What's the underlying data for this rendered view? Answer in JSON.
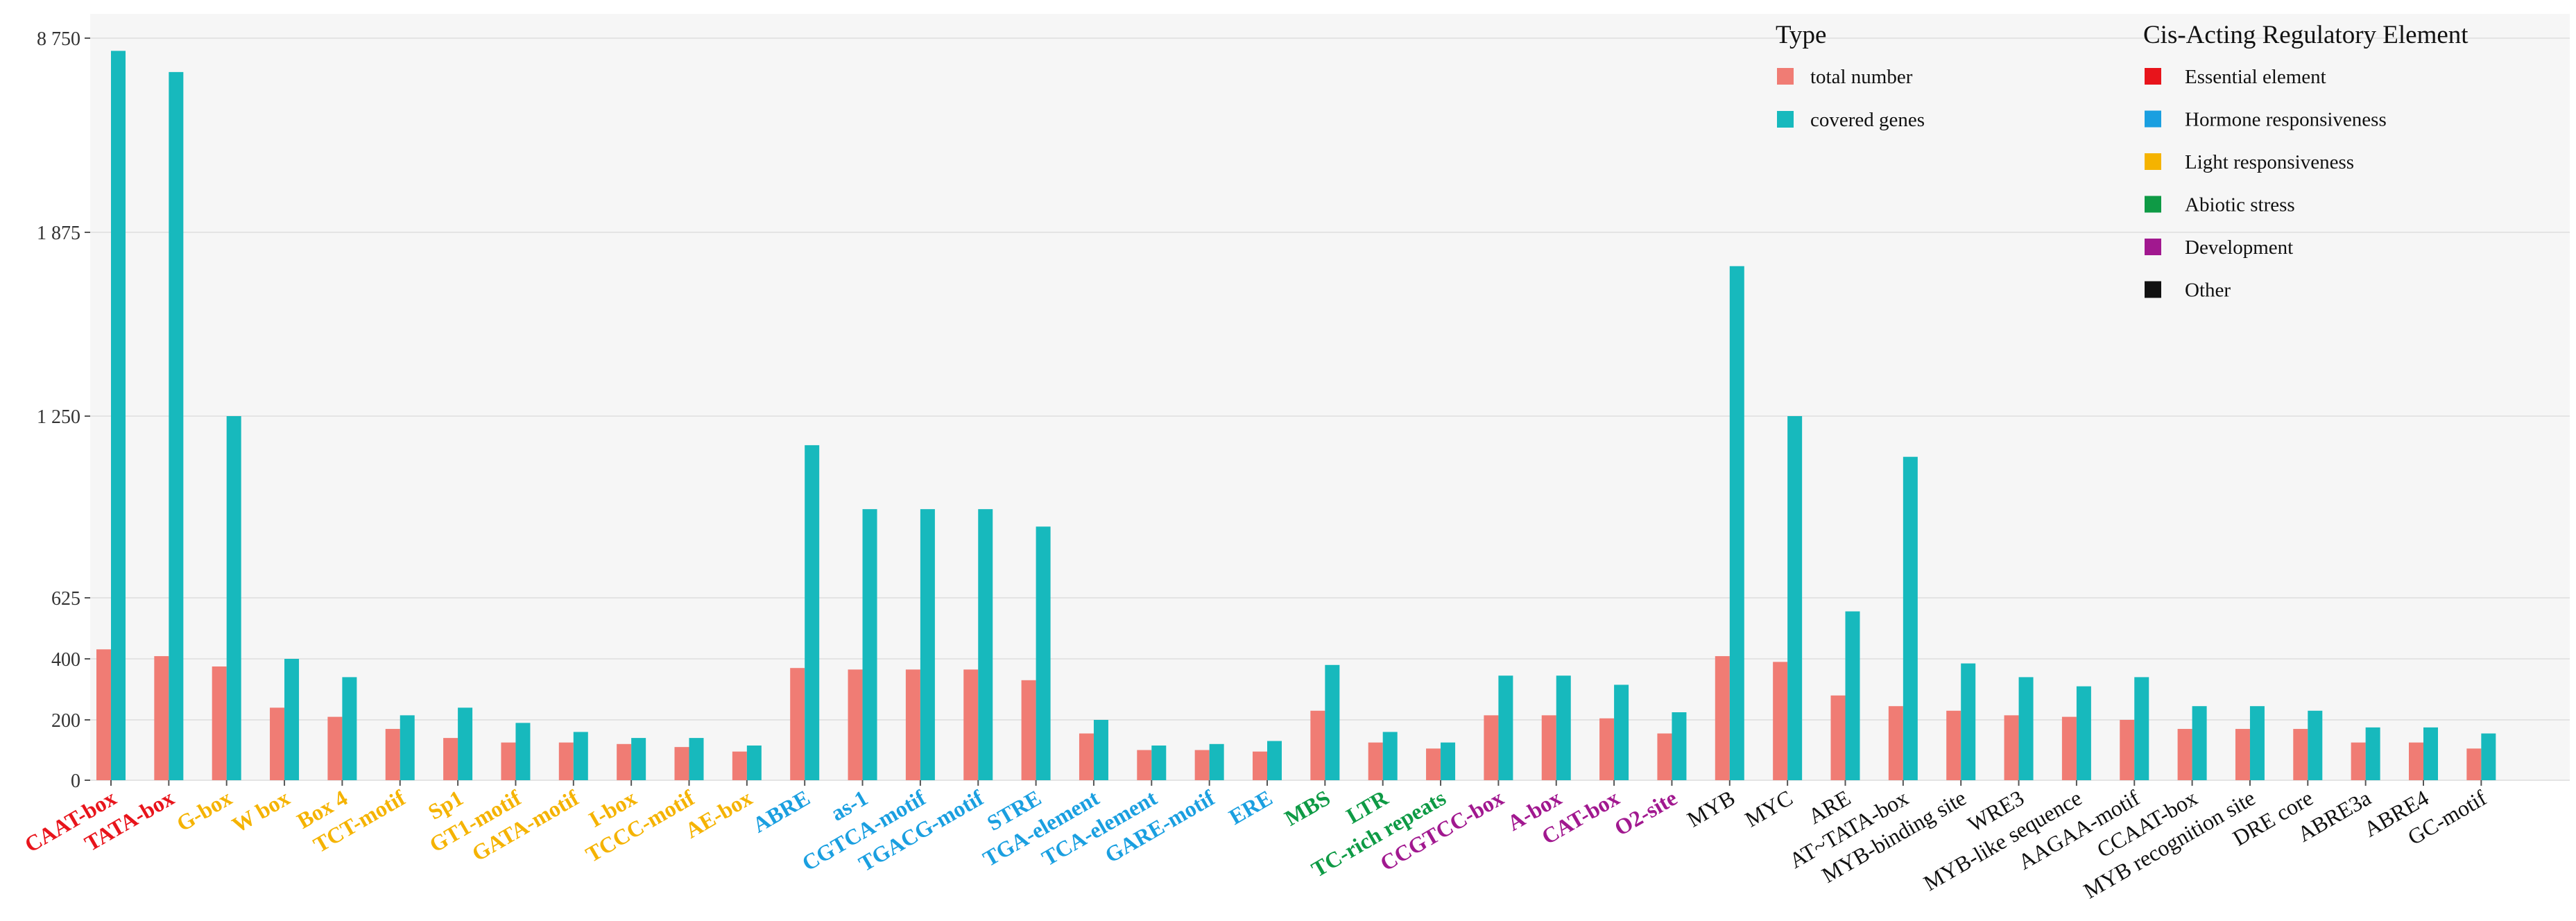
{
  "chart_data": {
    "type": "bar",
    "title": "",
    "xlabel": "",
    "ylabel": "",
    "y_ticks": [
      {
        "label": "0",
        "value": 0
      },
      {
        "label": "200",
        "value": 200
      },
      {
        "label": "400",
        "value": 400
      },
      {
        "label": "625",
        "value": 625
      },
      {
        "label": "1 250",
        "value": 1250
      },
      {
        "label": "1 875",
        "value": 1875
      },
      {
        "label": "8 750",
        "value": 8750
      }
    ],
    "categories": [
      "CAAT-box",
      "TATA-box",
      "G-box",
      "W box",
      "Box 4",
      "TCT-motif",
      "Sp1",
      "GT1-motif",
      "GATA-motif",
      "I-box",
      "TCCC-motif",
      "AE-box",
      "ABRE",
      "as-1",
      "CGTCA-motif",
      "TGACG-motif",
      "STRE",
      "TGA-element",
      "TCA-element",
      "GARE-motif",
      "ERE",
      "MBS",
      "LTR",
      "TC-rich repeats",
      "CCGTCC-box",
      "A-box",
      "CAT-box",
      "O2-site",
      "MYB",
      "MYC",
      "ARE",
      "AT~TATA-box",
      "MYB-binding site",
      "WRE3",
      "MYB-like sequence",
      "AAGAA-motif",
      "CCAAT-box",
      "MYB recognition site",
      "DRE core",
      "ABRE3a",
      "ABRE4",
      "GC-motif"
    ],
    "category_groups": [
      "Essential element",
      "Essential element",
      "Light responsiveness",
      "Light responsiveness",
      "Light responsiveness",
      "Light responsiveness",
      "Light responsiveness",
      "Light responsiveness",
      "Light responsiveness",
      "Light responsiveness",
      "Light responsiveness",
      "Light responsiveness",
      "Hormone responsiveness",
      "Hormone responsiveness",
      "Hormone responsiveness",
      "Hormone responsiveness",
      "Hormone responsiveness",
      "Hormone responsiveness",
      "Hormone responsiveness",
      "Hormone responsiveness",
      "Hormone responsiveness",
      "Abiotic stress",
      "Abiotic stress",
      "Abiotic stress",
      "Development",
      "Development",
      "Development",
      "Development",
      "Other",
      "Other",
      "Other",
      "Other",
      "Other",
      "Other",
      "Other",
      "Other",
      "Other",
      "Other",
      "Other",
      "Other",
      "Other",
      "Other"
    ],
    "series": [
      {
        "name": "total number",
        "color": "#F07C74",
        "values": [
          435,
          410,
          375,
          240,
          210,
          170,
          140,
          125,
          125,
          120,
          110,
          95,
          370,
          365,
          365,
          365,
          330,
          155,
          100,
          100,
          95,
          230,
          125,
          105,
          215,
          215,
          205,
          155,
          410,
          390,
          280,
          245,
          230,
          215,
          210,
          200,
          170,
          170,
          170,
          125,
          125,
          105
        ]
      },
      {
        "name": "covered genes",
        "color": "#17B9BD",
        "values": [
          8300,
          7550,
          1250,
          400,
          340,
          215,
          240,
          190,
          160,
          140,
          140,
          115,
          1150,
          930,
          930,
          930,
          870,
          200,
          115,
          120,
          130,
          380,
          160,
          125,
          345,
          345,
          315,
          225,
          1760,
          1250,
          575,
          1110,
          385,
          340,
          310,
          340,
          245,
          245,
          230,
          175,
          175,
          155
        ]
      }
    ],
    "legends": {
      "type": {
        "title": "Type",
        "items": [
          {
            "label": "total number",
            "color": "#F07C74"
          },
          {
            "label": "covered genes",
            "color": "#17B9BD"
          }
        ]
      },
      "element": {
        "title": "Cis-Acting Regulatory Element",
        "items": [
          {
            "label": "Essential element",
            "color": "#E8141B"
          },
          {
            "label": "Hormone responsiveness",
            "color": "#1A9FE0"
          },
          {
            "label": "Light responsiveness",
            "color": "#F5B300"
          },
          {
            "label": "Abiotic stress",
            "color": "#0E9A45"
          },
          {
            "label": "Development",
            "color": "#A1188F"
          },
          {
            "label": "Other",
            "color": "#111111"
          }
        ]
      }
    }
  }
}
